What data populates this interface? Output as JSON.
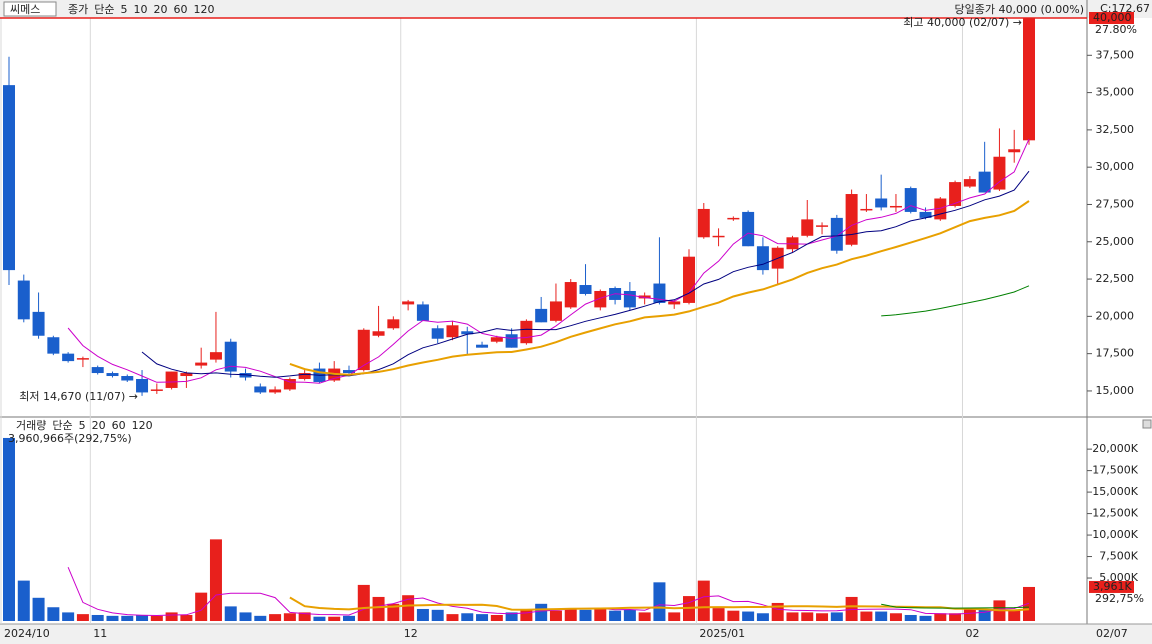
{
  "chart_data": {
    "type": "candlestick",
    "symbol": "씨메스",
    "legend_label": "종가",
    "ma_label": "단순",
    "ma_periods": [
      5,
      10,
      20,
      60,
      120
    ],
    "ma_colors": [
      "#cc00cc",
      "#000080",
      "#e8a000",
      "#008000",
      "#808080"
    ],
    "info": "C:172.67",
    "close_note": "당일종가 40,000 (0.00%)",
    "high_note": "최고 40,000 (02/07) →",
    "low_note": "최저 14,670 (11/07) →",
    "last_price_label": "40,000",
    "pct_label": "27.80%",
    "up_color": "#e8201c",
    "down_color": "#1a5fcc",
    "open": [
      35500,
      22400,
      20300,
      18600,
      17500,
      17100,
      16600,
      16200,
      16000,
      15800,
      15000,
      15200,
      16000,
      16700,
      17100,
      18300,
      16200,
      15300,
      14900,
      15100,
      15800,
      16500,
      15700,
      16400,
      16400,
      18700,
      19200,
      20800,
      20800,
      19200,
      18600,
      19000,
      18100,
      18300,
      18800,
      18200,
      20500,
      19700,
      20600,
      22100,
      20600,
      21900,
      21700,
      21200,
      22200,
      20800,
      20900,
      25300,
      25300,
      26500,
      27000,
      24700,
      23200,
      24500,
      25400,
      26000,
      26600,
      24800,
      27100,
      27900,
      27300,
      28600,
      27000,
      26500,
      27400,
      28700,
      29700,
      28500,
      31000,
      31800
    ],
    "high": [
      37400,
      22800,
      21600,
      18700,
      17600,
      17300,
      16700,
      16300,
      16100,
      16400,
      15500,
      16300,
      16300,
      17900,
      20300,
      18500,
      16500,
      15500,
      15300,
      15900,
      16400,
      16900,
      17000,
      16700,
      19200,
      20700,
      20000,
      21100,
      21000,
      19400,
      19700,
      19300,
      18300,
      18700,
      19200,
      19800,
      21300,
      22200,
      22500,
      23500,
      21800,
      22000,
      22300,
      21600,
      25300,
      21100,
      24500,
      27600,
      25900,
      26700,
      27100,
      25300,
      24700,
      25400,
      27800,
      26300,
      26800,
      28500,
      28200,
      29500,
      28200,
      28700,
      27300,
      28000,
      29100,
      29400,
      31700,
      32600,
      32500,
      40000
    ],
    "low": [
      22100,
      19600,
      18500,
      17400,
      16900,
      16600,
      16100,
      15900,
      15600,
      14670,
      14800,
      15100,
      15200,
      16500,
      16900,
      15900,
      15700,
      14800,
      14800,
      15000,
      15700,
      15500,
      15600,
      16100,
      16300,
      18600,
      19100,
      20400,
      19700,
      18200,
      18400,
      17400,
      17900,
      18200,
      17900,
      18100,
      19600,
      19600,
      20500,
      21400,
      20400,
      20800,
      20400,
      20800,
      20800,
      20500,
      20800,
      25200,
      24700,
      26400,
      24700,
      22800,
      22100,
      24300,
      25300,
      25500,
      24200,
      24700,
      27000,
      27100,
      27000,
      26900,
      26500,
      26400,
      27300,
      28600,
      28300,
      28400,
      30300,
      31500
    ],
    "close": [
      23100,
      19800,
      18700,
      17500,
      17000,
      17200,
      16200,
      16000,
      15700,
      14900,
      15100,
      16300,
      16200,
      16900,
      17600,
      16300,
      15900,
      14900,
      15100,
      15800,
      16200,
      15600,
      16500,
      16200,
      19100,
      19000,
      19800,
      21000,
      19700,
      18500,
      19400,
      18800,
      17900,
      18600,
      17900,
      19700,
      19600,
      21000,
      22300,
      21500,
      21700,
      21100,
      20600,
      21400,
      20900,
      21000,
      24000,
      27200,
      25400,
      26600,
      24700,
      23100,
      24600,
      25300,
      26500,
      26100,
      24400,
      28200,
      27200,
      27300,
      27400,
      27000,
      26600,
      27900,
      29000,
      29200,
      28300,
      30700,
      31200,
      40000
    ],
    "ylim": [
      13320,
      40000
    ],
    "yticks": [
      {
        "value": 15000,
        "label": "15,000"
      },
      {
        "value": 17500,
        "label": "17,500"
      },
      {
        "value": 20000,
        "label": "20,000"
      },
      {
        "value": 22500,
        "label": "22,500"
      },
      {
        "value": 25000,
        "label": "25,000"
      },
      {
        "value": 27500,
        "label": "27,500"
      },
      {
        "value": 30000,
        "label": "30,000"
      },
      {
        "value": 32500,
        "label": "32,500"
      },
      {
        "value": 35000,
        "label": "35,000"
      },
      {
        "value": 37500,
        "label": "37,500"
      }
    ],
    "xticks": [
      {
        "value": 0,
        "label": "2024/10"
      },
      {
        "value": 6,
        "label": "11"
      },
      {
        "value": 27,
        "label": "12"
      },
      {
        "value": 47,
        "label": "2025/01"
      },
      {
        "value": 65,
        "label": "02"
      }
    ],
    "last_date": "02/07",
    "volume": {
      "label": "거래량",
      "ma_label": "단순",
      "ma_periods": [
        5,
        20,
        60,
        120
      ],
      "ma_colors": [
        "#cc00cc",
        "#e8a000",
        "#008000",
        "#808080"
      ],
      "note": "3,960,966주(292,75%)",
      "last_label": "3,961K",
      "pct_label": "292,75%",
      "values": [
        21300,
        4700,
        2700,
        1600,
        1000,
        800,
        700,
        600,
        600,
        700,
        600,
        1000,
        700,
        3300,
        9500,
        1700,
        1000,
        600,
        800,
        900,
        1000,
        500,
        500,
        600,
        4200,
        2800,
        2000,
        3000,
        1400,
        1300,
        800,
        900,
        800,
        700,
        1000,
        1300,
        2000,
        1200,
        1500,
        1300,
        1400,
        1200,
        1300,
        1000,
        4500,
        1000,
        2900,
        4700,
        1500,
        1200,
        1100,
        900,
        2100,
        1000,
        1000,
        900,
        1000,
        2800,
        1100,
        1100,
        900,
        700,
        600,
        900,
        900,
        1400,
        1300,
        2400,
        1300,
        3961
      ],
      "ylim": [
        0,
        23390
      ],
      "yticks": [
        {
          "value": 5000,
          "label": "5,000K"
        },
        {
          "value": 7500,
          "label": "7,500K"
        },
        {
          "value": 10000,
          "label": "10,000K"
        },
        {
          "value": 12500,
          "label": "12,500K"
        },
        {
          "value": 15000,
          "label": "15,000K"
        },
        {
          "value": 17500,
          "label": "17,500K"
        },
        {
          "value": 20000,
          "label": "20,000K"
        }
      ]
    }
  }
}
